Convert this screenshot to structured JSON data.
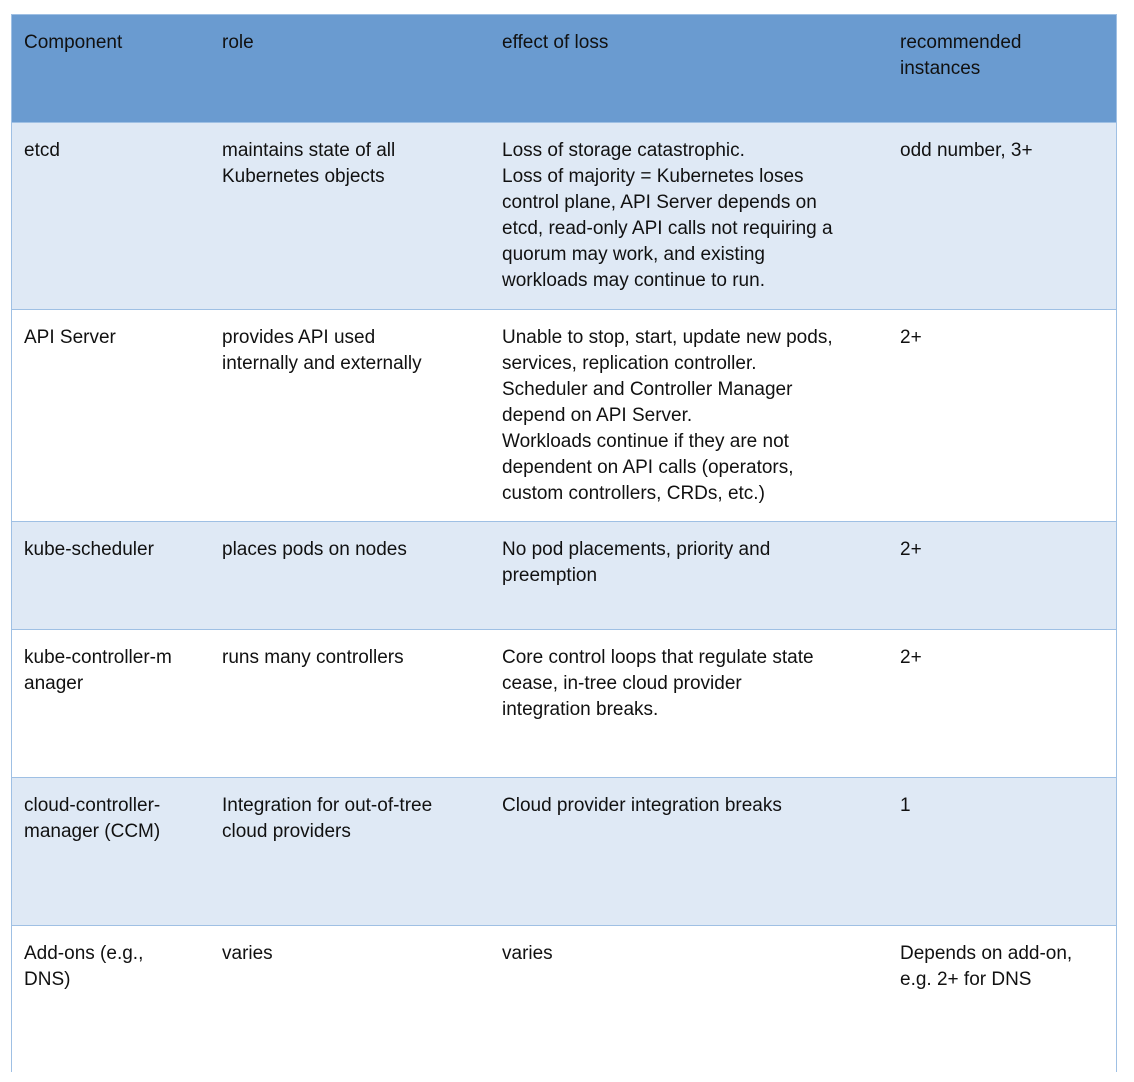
{
  "header": [
    "Component",
    "role",
    "effect of loss",
    "recommended\ninstances"
  ],
  "rows": [
    [
      "etcd",
      "maintains state of all\nKubernetes objects",
      "Loss of storage catastrophic.\nLoss of majority = Kubernetes loses\ncontrol plane, API Server depends on\netcd, read-only API calls not requiring a\nquorum may work, and existing\nworkloads may continue to run.",
      "odd number, 3+"
    ],
    [
      "API Server",
      "provides API used\ninternally and externally",
      "Unable to stop, start, update new pods,\nservices, replication controller.\nScheduler and Controller Manager\ndepend on API Server.\nWorkloads continue if they are not\ndependent on API calls (operators,\ncustom controllers, CRDs, etc.)",
      "2+"
    ],
    [
      "kube-scheduler",
      "places pods on nodes",
      "No pod placements, priority and\npreemption",
      "2+"
    ],
    [
      "kube-controller-m\nanager",
      "runs many controllers",
      "Core control loops that regulate state\ncease, in-tree cloud provider\nintegration breaks.",
      "2+"
    ],
    [
      "cloud-controller-\nmanager (CCM)",
      "Integration for out-of-tree\ncloud providers",
      "Cloud provider integration breaks",
      "1"
    ],
    [
      "Add-ons (e.g.,\nDNS)",
      "varies",
      "varies",
      "Depends on add-on,\ne.g. 2+ for DNS"
    ]
  ],
  "colors": {
    "header_bg": "#6a9bd0",
    "alt_row_bg": "#dfe9f5",
    "border": "#9fc0e4"
  }
}
